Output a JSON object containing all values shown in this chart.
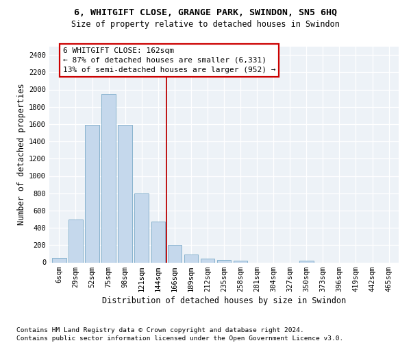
{
  "title1": "6, WHITGIFT CLOSE, GRANGE PARK, SWINDON, SN5 6HQ",
  "title2": "Size of property relative to detached houses in Swindon",
  "xlabel": "Distribution of detached houses by size in Swindon",
  "ylabel": "Number of detached properties",
  "bar_color": "#c5d8ec",
  "bar_edge_color": "#7aaac8",
  "categories": [
    "6sqm",
    "29sqm",
    "52sqm",
    "75sqm",
    "98sqm",
    "121sqm",
    "144sqm",
    "166sqm",
    "189sqm",
    "212sqm",
    "235sqm",
    "258sqm",
    "281sqm",
    "304sqm",
    "327sqm",
    "350sqm",
    "373sqm",
    "396sqm",
    "419sqm",
    "442sqm",
    "465sqm"
  ],
  "values": [
    50,
    500,
    1590,
    1950,
    1590,
    800,
    470,
    200,
    90,
    40,
    30,
    20,
    0,
    0,
    0,
    20,
    0,
    0,
    0,
    0,
    0
  ],
  "ylim": [
    0,
    2500
  ],
  "yticks": [
    0,
    200,
    400,
    600,
    800,
    1000,
    1200,
    1400,
    1600,
    1800,
    2000,
    2200,
    2400
  ],
  "vline_x_idx": 6.5,
  "vline_color": "#bb0000",
  "box_text_line1": "6 WHITGIFT CLOSE: 162sqm",
  "box_text_line2": "← 87% of detached houses are smaller (6,331)",
  "box_text_line3": "13% of semi-detached houses are larger (952) →",
  "box_edge_color": "#cc0000",
  "footer1": "Contains HM Land Registry data © Crown copyright and database right 2024.",
  "footer2": "Contains public sector information licensed under the Open Government Licence v3.0.",
  "bg_color": "#edf2f7",
  "grid_color": "#ffffff"
}
